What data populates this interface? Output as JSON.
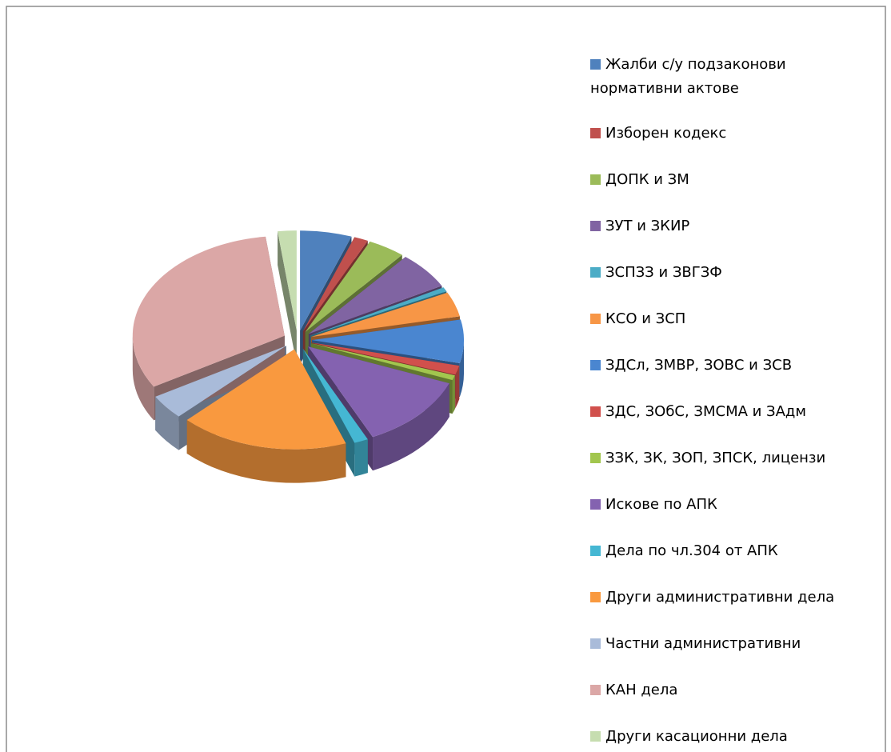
{
  "chart_data": {
    "type": "pie",
    "categories": [
      "Жалби с/у подзаконови нормативни актове",
      "Изборен кодекс",
      "ДОПК и ЗМ",
      "ЗУТ и ЗКИР",
      "ЗСПЗЗ и ЗВГЗФ",
      "КСО и ЗСП",
      "ЗДСл, ЗМВР, ЗОВС и ЗСВ",
      "ЗДС, ЗОбС, ЗМСМА и ЗАдм",
      "ЗЗК, ЗК, ЗОП, ЗПСК, лицензи",
      "Искове по АПК",
      "Дела по чл.304 от АПК",
      "Други административни дела",
      "Частни административни",
      "КАН  дела",
      "Други касационни  дела"
    ],
    "values": [
      5.5,
      1.5,
      4,
      6,
      0.7,
      4,
      7,
      1.5,
      0.8,
      12,
      1.5,
      18,
      4,
      31.5,
      2
    ],
    "colors": [
      "#4F81BD",
      "#C0504D",
      "#9BBB59",
      "#8064A2",
      "#4BACC6",
      "#F79646",
      "#4A86D0",
      "#D1504C",
      "#A2C64E",
      "#8462B0",
      "#45B7D3",
      "#F9993F",
      "#A9BBD9",
      "#DBA7A6",
      "#C6DDB0"
    ]
  }
}
